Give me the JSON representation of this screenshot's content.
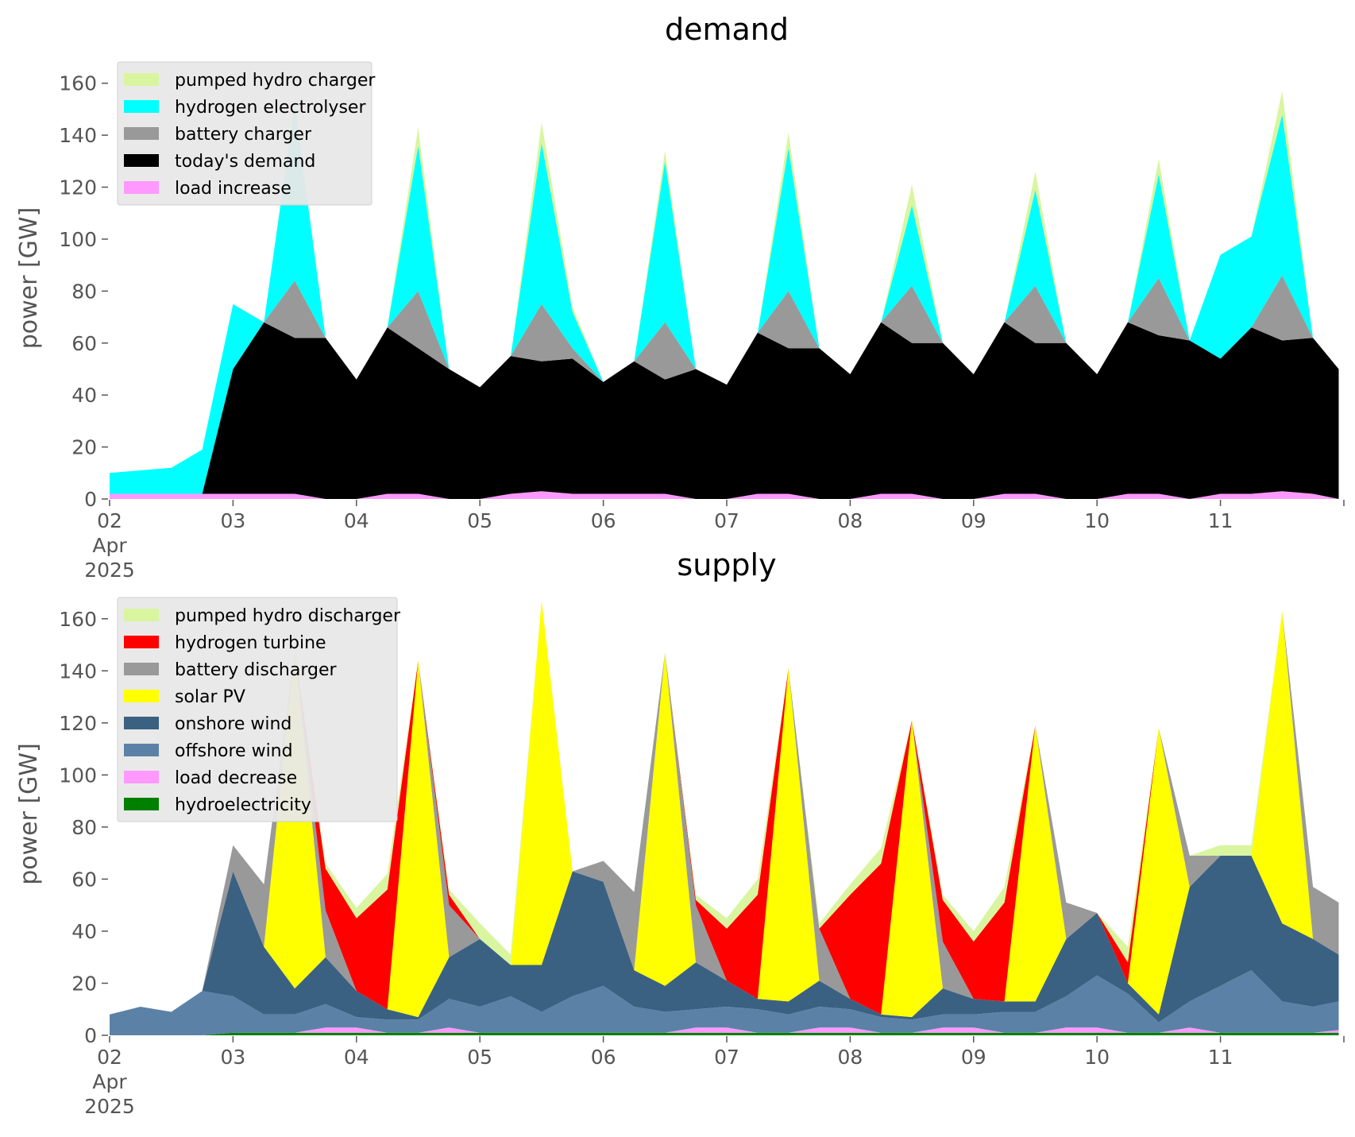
{
  "chart_data": [
    {
      "type": "area",
      "title": "demand",
      "ylabel": "power [GW]",
      "xlabel": "",
      "ylim": [
        0,
        170
      ],
      "yticks": [
        "0",
        "20",
        "40",
        "60",
        "80",
        "100",
        "120",
        "140",
        "160"
      ],
      "xticks": [
        "02",
        "03",
        "04",
        "05",
        "06",
        "07",
        "08",
        "09",
        "10",
        "11"
      ],
      "xtick_date_labels": [
        "Apr",
        "2025"
      ],
      "x": [
        "2025-04-02 00:00",
        "2025-04-02 06:00",
        "2025-04-02 12:00",
        "2025-04-02 18:00",
        "2025-04-03 00:00",
        "2025-04-03 06:00",
        "2025-04-03 12:00",
        "2025-04-03 18:00",
        "2025-04-04 00:00",
        "2025-04-04 06:00",
        "2025-04-04 12:00",
        "2025-04-04 18:00",
        "2025-04-05 00:00",
        "2025-04-05 06:00",
        "2025-04-05 12:00",
        "2025-04-05 18:00",
        "2025-04-06 00:00",
        "2025-04-06 06:00",
        "2025-04-06 12:00",
        "2025-04-06 18:00",
        "2025-04-07 00:00",
        "2025-04-07 06:00",
        "2025-04-07 12:00",
        "2025-04-07 18:00",
        "2025-04-08 00:00",
        "2025-04-08 06:00",
        "2025-04-08 12:00",
        "2025-04-08 18:00",
        "2025-04-09 00:00",
        "2025-04-09 06:00",
        "2025-04-09 12:00",
        "2025-04-09 18:00",
        "2025-04-10 00:00",
        "2025-04-10 06:00",
        "2025-04-10 12:00",
        "2025-04-10 18:00",
        "2025-04-11 00:00",
        "2025-04-11 06:00",
        "2025-04-11 12:00",
        "2025-04-11 18:00",
        "2025-04-11 23:00"
      ],
      "legend": "upper-left",
      "grid": false,
      "series": [
        {
          "name": "load increase",
          "color": "#ff99ff",
          "values": [
            2,
            2,
            2,
            2,
            2,
            2,
            2,
            0,
            0,
            2,
            2,
            0,
            0,
            2,
            3,
            2,
            2,
            2,
            2,
            0,
            0,
            2,
            2,
            0,
            0,
            2,
            2,
            0,
            0,
            2,
            2,
            0,
            0,
            2,
            2,
            0,
            2,
            2,
            3,
            2,
            0
          ]
        },
        {
          "name": "today's demand",
          "color": "#000000",
          "values": [
            0,
            0,
            0,
            0,
            48,
            66,
            60,
            62,
            46,
            64,
            56,
            50,
            43,
            53,
            50,
            52,
            43,
            51,
            44,
            50,
            44,
            62,
            56,
            58,
            48,
            66,
            58,
            60,
            48,
            66,
            58,
            60,
            48,
            66,
            61,
            61,
            52,
            64,
            58,
            60,
            50
          ]
        },
        {
          "name": "battery charger",
          "color": "#999999",
          "values": [
            0,
            0,
            0,
            0,
            0,
            0,
            22,
            0,
            0,
            0,
            22,
            0,
            0,
            0,
            22,
            4,
            0,
            0,
            22,
            0,
            0,
            0,
            22,
            0,
            0,
            0,
            22,
            0,
            0,
            0,
            22,
            0,
            0,
            0,
            22,
            0,
            0,
            0,
            25,
            0,
            0
          ]
        },
        {
          "name": "hydrogen electrolyser",
          "color": "#00ffff",
          "values": [
            8,
            9,
            10,
            17,
            25,
            0,
            68,
            0,
            0,
            0,
            56,
            0,
            0,
            0,
            62,
            14,
            0,
            0,
            62,
            0,
            0,
            0,
            55,
            0,
            0,
            0,
            31,
            0,
            0,
            0,
            37,
            0,
            0,
            0,
            40,
            0,
            40,
            35,
            62,
            0,
            0
          ]
        },
        {
          "name": "pumped hydro charger",
          "color": "#d9f5a0",
          "values": [
            0,
            0,
            0,
            0,
            0,
            0,
            0,
            0,
            0,
            0,
            7,
            0,
            0,
            0,
            8,
            2,
            0,
            0,
            4,
            0,
            0,
            0,
            6,
            0,
            0,
            0,
            8,
            0,
            0,
            0,
            7,
            0,
            0,
            0,
            6,
            0,
            0,
            0,
            9,
            0,
            0
          ]
        }
      ]
    },
    {
      "type": "area",
      "title": "supply",
      "ylabel": "power [GW]",
      "xlabel": "",
      "ylim": [
        0,
        170
      ],
      "yticks": [
        "0",
        "20",
        "40",
        "60",
        "80",
        "100",
        "120",
        "140",
        "160"
      ],
      "xticks": [
        "02",
        "03",
        "04",
        "05",
        "06",
        "07",
        "08",
        "09",
        "10",
        "11"
      ],
      "xtick_date_labels": [
        "Apr",
        "2025"
      ],
      "x": [
        "2025-04-02 00:00",
        "2025-04-02 06:00",
        "2025-04-02 12:00",
        "2025-04-02 18:00",
        "2025-04-03 00:00",
        "2025-04-03 06:00",
        "2025-04-03 12:00",
        "2025-04-03 18:00",
        "2025-04-04 00:00",
        "2025-04-04 06:00",
        "2025-04-04 12:00",
        "2025-04-04 18:00",
        "2025-04-05 00:00",
        "2025-04-05 06:00",
        "2025-04-05 12:00",
        "2025-04-05 18:00",
        "2025-04-06 00:00",
        "2025-04-06 06:00",
        "2025-04-06 12:00",
        "2025-04-06 18:00",
        "2025-04-07 00:00",
        "2025-04-07 06:00",
        "2025-04-07 12:00",
        "2025-04-07 18:00",
        "2025-04-08 00:00",
        "2025-04-08 06:00",
        "2025-04-08 12:00",
        "2025-04-08 18:00",
        "2025-04-09 00:00",
        "2025-04-09 06:00",
        "2025-04-09 12:00",
        "2025-04-09 18:00",
        "2025-04-10 00:00",
        "2025-04-10 06:00",
        "2025-04-10 12:00",
        "2025-04-10 18:00",
        "2025-04-11 00:00",
        "2025-04-11 06:00",
        "2025-04-11 12:00",
        "2025-04-11 18:00",
        "2025-04-11 23:00"
      ],
      "legend": "upper-left",
      "grid": false,
      "series": [
        {
          "name": "hydroelectricity",
          "color": "#008000",
          "values": [
            0,
            0,
            0,
            0,
            1,
            1,
            1,
            1,
            1,
            1,
            1,
            1,
            1,
            1,
            1,
            1,
            1,
            1,
            1,
            1,
            1,
            1,
            1,
            1,
            1,
            1,
            1,
            1,
            1,
            1,
            1,
            1,
            1,
            1,
            1,
            1,
            1,
            1,
            1,
            1,
            1
          ]
        },
        {
          "name": "load decrease",
          "color": "#ff99ff",
          "values": [
            0,
            0,
            0,
            0,
            0,
            0,
            0,
            2,
            2,
            0,
            0,
            2,
            0,
            0,
            0,
            0,
            0,
            0,
            0,
            2,
            2,
            0,
            0,
            2,
            2,
            0,
            0,
            2,
            2,
            0,
            0,
            2,
            2,
            0,
            0,
            2,
            0,
            0,
            0,
            0,
            1
          ]
        },
        {
          "name": "offshore wind",
          "color": "#5b82a6",
          "values": [
            8,
            11,
            9,
            17,
            14,
            7,
            7,
            9,
            4,
            5,
            5,
            11,
            10,
            14,
            8,
            14,
            18,
            10,
            8,
            7,
            8,
            9,
            7,
            8,
            7,
            6,
            5,
            5,
            5,
            8,
            8,
            12,
            20,
            15,
            4,
            10,
            18,
            24,
            12,
            10,
            11
          ]
        },
        {
          "name": "onshore wind",
          "color": "#3b6182",
          "values": [
            0,
            0,
            0,
            0,
            48,
            26,
            10,
            18,
            10,
            4,
            1,
            16,
            26,
            12,
            18,
            48,
            40,
            14,
            10,
            18,
            10,
            4,
            5,
            10,
            4,
            1,
            1,
            10,
            6,
            4,
            4,
            22,
            24,
            4,
            3,
            44,
            50,
            44,
            30,
            26,
            18
          ]
        },
        {
          "name": "solar PV",
          "color": "#ffff00",
          "values": [
            0,
            0,
            0,
            0,
            0,
            0,
            130,
            0,
            0,
            0,
            137,
            0,
            0,
            0,
            140,
            0,
            0,
            0,
            128,
            0,
            0,
            0,
            128,
            0,
            0,
            0,
            114,
            0,
            0,
            0,
            106,
            0,
            0,
            0,
            110,
            0,
            0,
            0,
            120,
            0,
            0
          ]
        },
        {
          "name": "battery discharger",
          "color": "#999999",
          "values": [
            0,
            0,
            0,
            0,
            10,
            24,
            0,
            18,
            0,
            0,
            0,
            20,
            0,
            0,
            0,
            0,
            8,
            30,
            0,
            22,
            0,
            0,
            0,
            20,
            0,
            0,
            0,
            18,
            0,
            0,
            0,
            14,
            0,
            0,
            0,
            12,
            0,
            0,
            0,
            20,
            20
          ]
        },
        {
          "name": "hydrogen turbine",
          "color": "#ff0000",
          "values": [
            0,
            0,
            0,
            0,
            0,
            0,
            0,
            16,
            28,
            46,
            0,
            4,
            0,
            0,
            0,
            0,
            0,
            0,
            0,
            2,
            20,
            40,
            0,
            0,
            40,
            58,
            0,
            16,
            22,
            38,
            0,
            0,
            0,
            8,
            0,
            0,
            0,
            0,
            0,
            0,
            0
          ]
        },
        {
          "name": "pumped hydro discharger",
          "color": "#d9f5a0",
          "values": [
            0,
            0,
            0,
            0,
            0,
            0,
            0,
            2,
            4,
            6,
            0,
            2,
            6,
            4,
            0,
            0,
            0,
            0,
            0,
            2,
            4,
            6,
            0,
            2,
            4,
            6,
            0,
            2,
            4,
            6,
            0,
            0,
            0,
            6,
            0,
            0,
            4,
            4,
            0,
            0,
            0
          ]
        }
      ]
    }
  ]
}
